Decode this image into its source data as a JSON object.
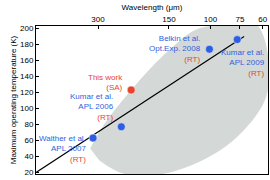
{
  "chart_data": {
    "type": "scatter",
    "x_label": "Wavelength (μm)",
    "y_label": "Maximum operating temperature (K)",
    "log": "x",
    "xlim": [
      550,
      57
    ],
    "xticks": [
      300,
      150,
      100,
      75,
      60
    ],
    "ylim": [
      18,
      203
    ],
    "yticks": [
      20,
      40,
      60,
      80,
      100,
      120,
      140,
      160,
      180,
      200
    ],
    "grid": false,
    "points": {
      "marker": "circle",
      "x": [
        217,
        239,
        315,
        101,
        77
      ],
      "values": [
        123,
        77,
        63,
        174,
        186
      ],
      "colors": [
        "#e8432f",
        "#2f5fe0",
        "#2f5fe0",
        "#2f5fe0",
        "#2f5fe0"
      ],
      "labels": [
        {
          "lines": [
            "This work",
            "(SA)"
          ],
          "colors": [
            "#e8432f",
            "#e8432f"
          ]
        },
        {
          "lines": [
            "Kumar et al.",
            "APL 2006",
            "(RT)"
          ],
          "colors": [
            "#2f5fe0",
            "#2f5fe0",
            "#e8432f"
          ]
        },
        {
          "lines": [
            "Walther et al.",
            "APL 2007",
            "(RT)"
          ],
          "colors": [
            "#2f5fe0",
            "#2f5fe0",
            "#e8432f"
          ]
        },
        {
          "lines": [
            "Belkin et al.",
            "Opt.Exp. 2008",
            "(RT)"
          ],
          "colors": [
            "#2f5fe0",
            "#2f5fe0",
            "#e8432f"
          ]
        },
        {
          "lines": [
            "Kumar et al.",
            "APL 2009",
            "(RT)"
          ],
          "colors": [
            "#2f5fe0",
            "#2f5fe0",
            "#e8432f"
          ]
        }
      ]
    },
    "trend_line": {
      "x": [
        550,
        72
      ],
      "values": [
        20,
        190
      ],
      "color": "#000000",
      "line_style": "solid"
    },
    "region": {
      "x": [
        324,
        281,
        211,
        151,
        114,
        82,
        64,
        57,
        58,
        71,
        99,
        159,
        232,
        296
      ],
      "values": [
        50,
        81,
        127,
        172,
        199,
        205,
        205,
        167,
        115,
        75,
        41,
        18,
        18,
        35
      ],
      "color": "#d4d9d7"
    }
  }
}
